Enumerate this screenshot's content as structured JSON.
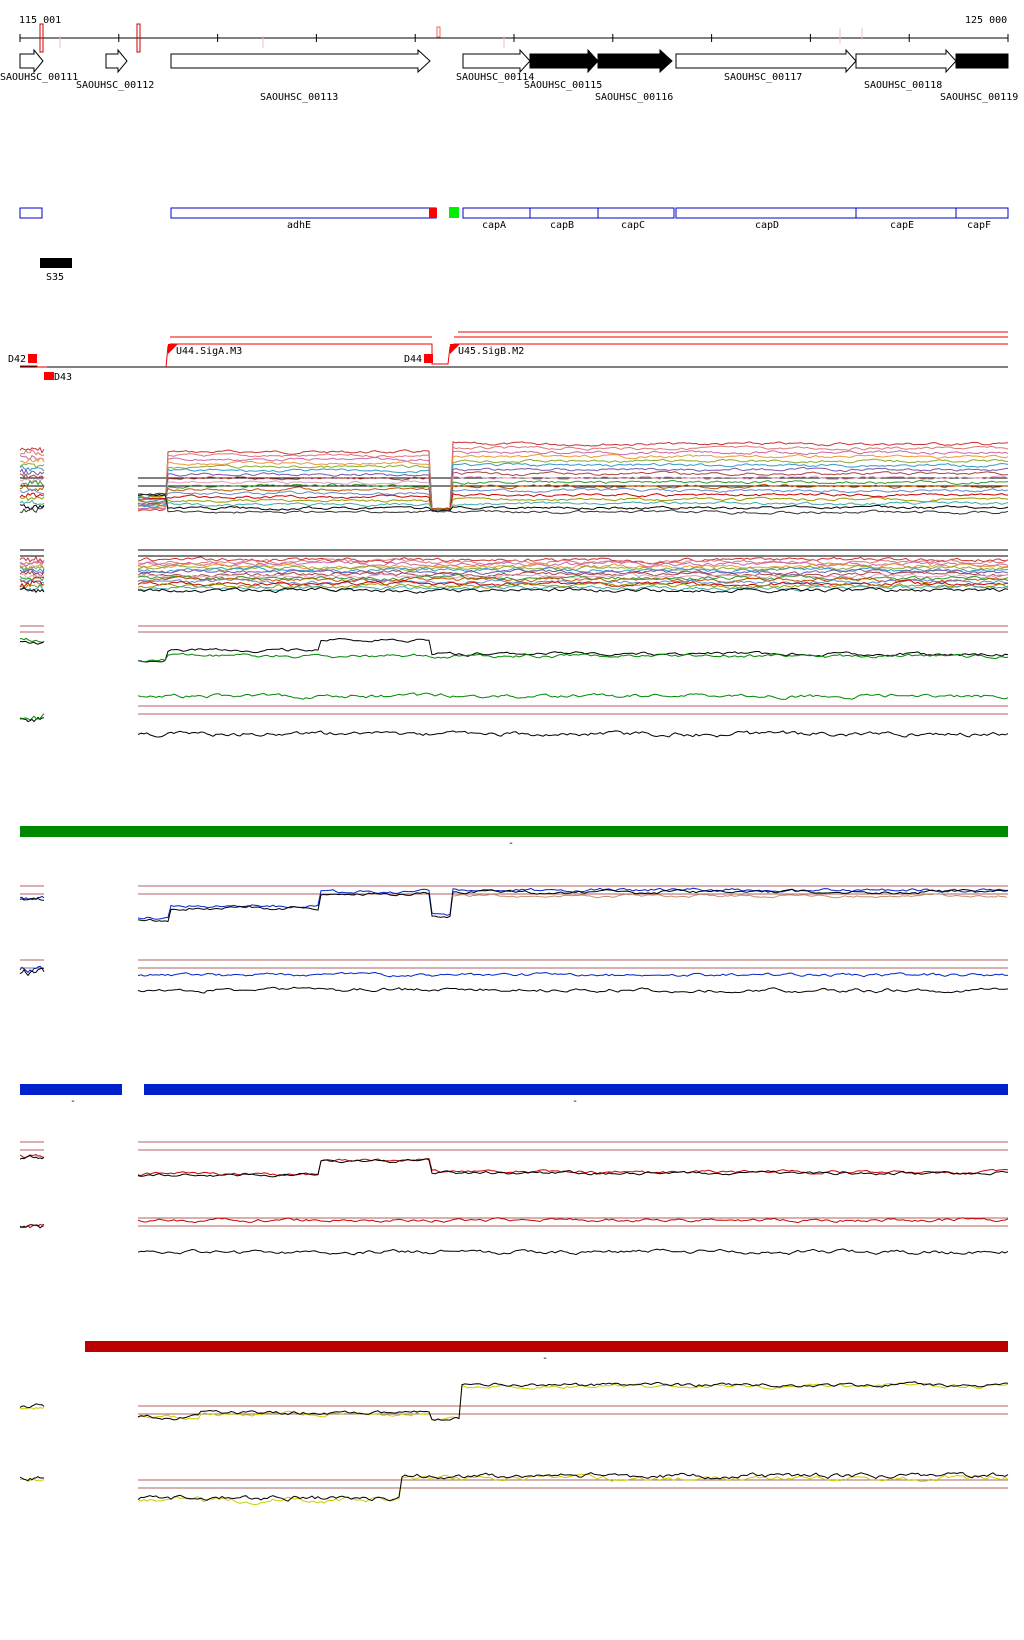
{
  "coords": {
    "start_label": "115 001",
    "end_label": "125 000"
  },
  "genes": [
    {
      "label": "SAOUHSC_00111",
      "filled": false
    },
    {
      "label": "SAOUHSC_00112",
      "filled": false
    },
    {
      "label": "SAOUHSC_00113",
      "filled": false
    },
    {
      "label": "SAOUHSC_00114",
      "filled": false
    },
    {
      "label": "SAOUHSC_00115",
      "filled": true
    },
    {
      "label": "SAOUHSC_00116",
      "filled": true
    },
    {
      "label": "SAOUHSC_00117",
      "filled": false
    },
    {
      "label": "SAOUHSC_00118",
      "filled": false
    },
    {
      "label": "SAOUHSC_00119",
      "filled": true
    }
  ],
  "annotations": [
    {
      "label": ""
    },
    {
      "label": "adhE"
    },
    {
      "label": "capA"
    },
    {
      "label": "capB"
    },
    {
      "label": "capC"
    },
    {
      "label": "capD"
    },
    {
      "label": "capE"
    },
    {
      "label": "capF"
    }
  ],
  "srna": {
    "label": "S35"
  },
  "segments": [
    {
      "label": "D42"
    },
    {
      "label": "D43"
    },
    {
      "label": "U44.SigA.M3"
    },
    {
      "label": "D44"
    },
    {
      "label": "U45.SigB.M2"
    }
  ],
  "condition_bars": [
    {
      "color": "#008800",
      "label": "-"
    },
    {
      "color": "#0022cc",
      "label": "-"
    },
    {
      "color": "#0022cc",
      "label": "-"
    },
    {
      "color": "#bb0000",
      "label": "-"
    }
  ],
  "colors": {
    "gene_outline": "#000000",
    "annotation_outline": "#0000cc",
    "segment_red": "#ff0000",
    "green_marker": "#00ee00",
    "threshold_line": "#b06060"
  }
}
